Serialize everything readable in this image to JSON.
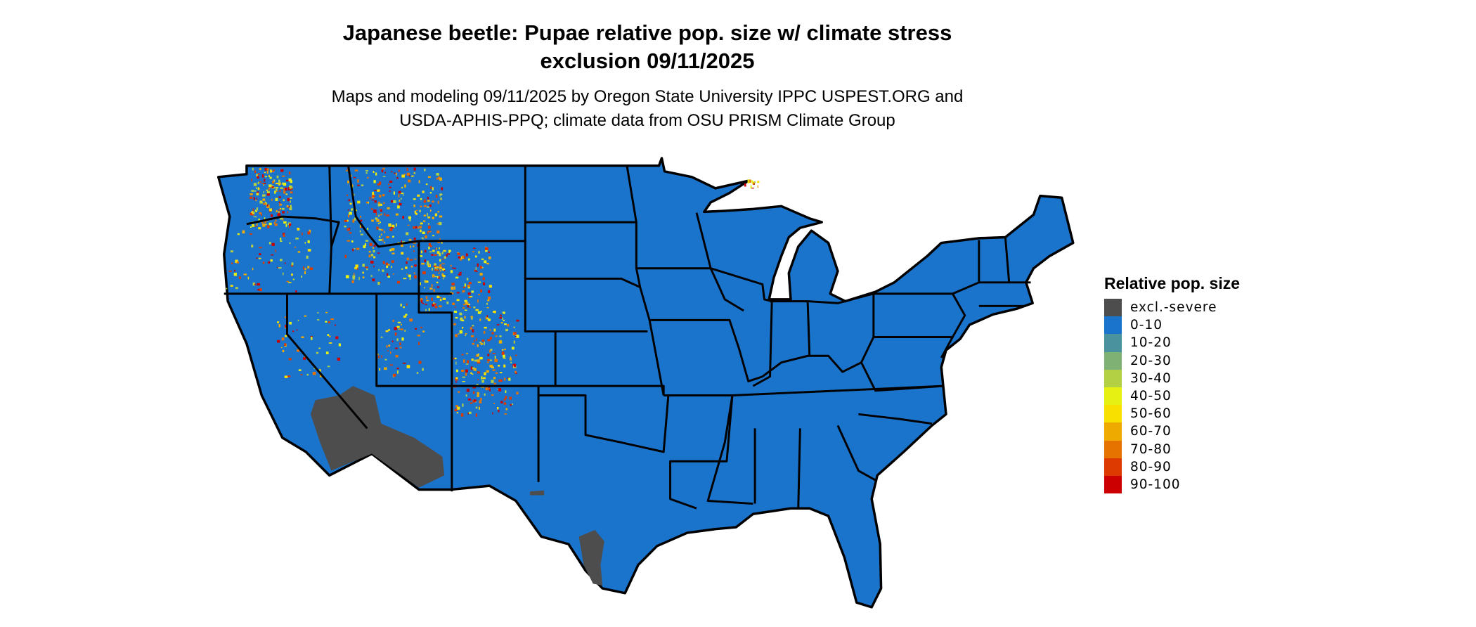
{
  "title_line1": "Japanese beetle: Pupae relative pop. size w/ climate stress",
  "title_line2": "exclusion 09/11/2025",
  "subtitle_line1": "Maps and modeling 09/11/2025 by Oregon State University IPPC USPEST.ORG and",
  "subtitle_line2": "USDA-APHIS-PPQ; climate data from OSU PRISM Climate Group",
  "legend": {
    "title": "Relative pop. size",
    "items": [
      {
        "label": "excl.-severe",
        "color": "#4d4d4d"
      },
      {
        "label": "0-10",
        "color": "#1b74cc"
      },
      {
        "label": "10-20",
        "color": "#4a929e"
      },
      {
        "label": "20-30",
        "color": "#7fb074"
      },
      {
        "label": "30-40",
        "color": "#b3d044"
      },
      {
        "label": "40-50",
        "color": "#e6f013"
      },
      {
        "label": "50-60",
        "color": "#f8e000"
      },
      {
        "label": "60-70",
        "color": "#efaa00"
      },
      {
        "label": "70-80",
        "color": "#e67300"
      },
      {
        "label": "80-90",
        "color": "#dc3a00"
      },
      {
        "label": "90-100",
        "color": "#cc0000"
      }
    ]
  },
  "map": {
    "region": "Contiguous United States",
    "base_color": "#1b74cc",
    "exclusion_color": "#4d4d4d",
    "border_color": "#000000"
  }
}
